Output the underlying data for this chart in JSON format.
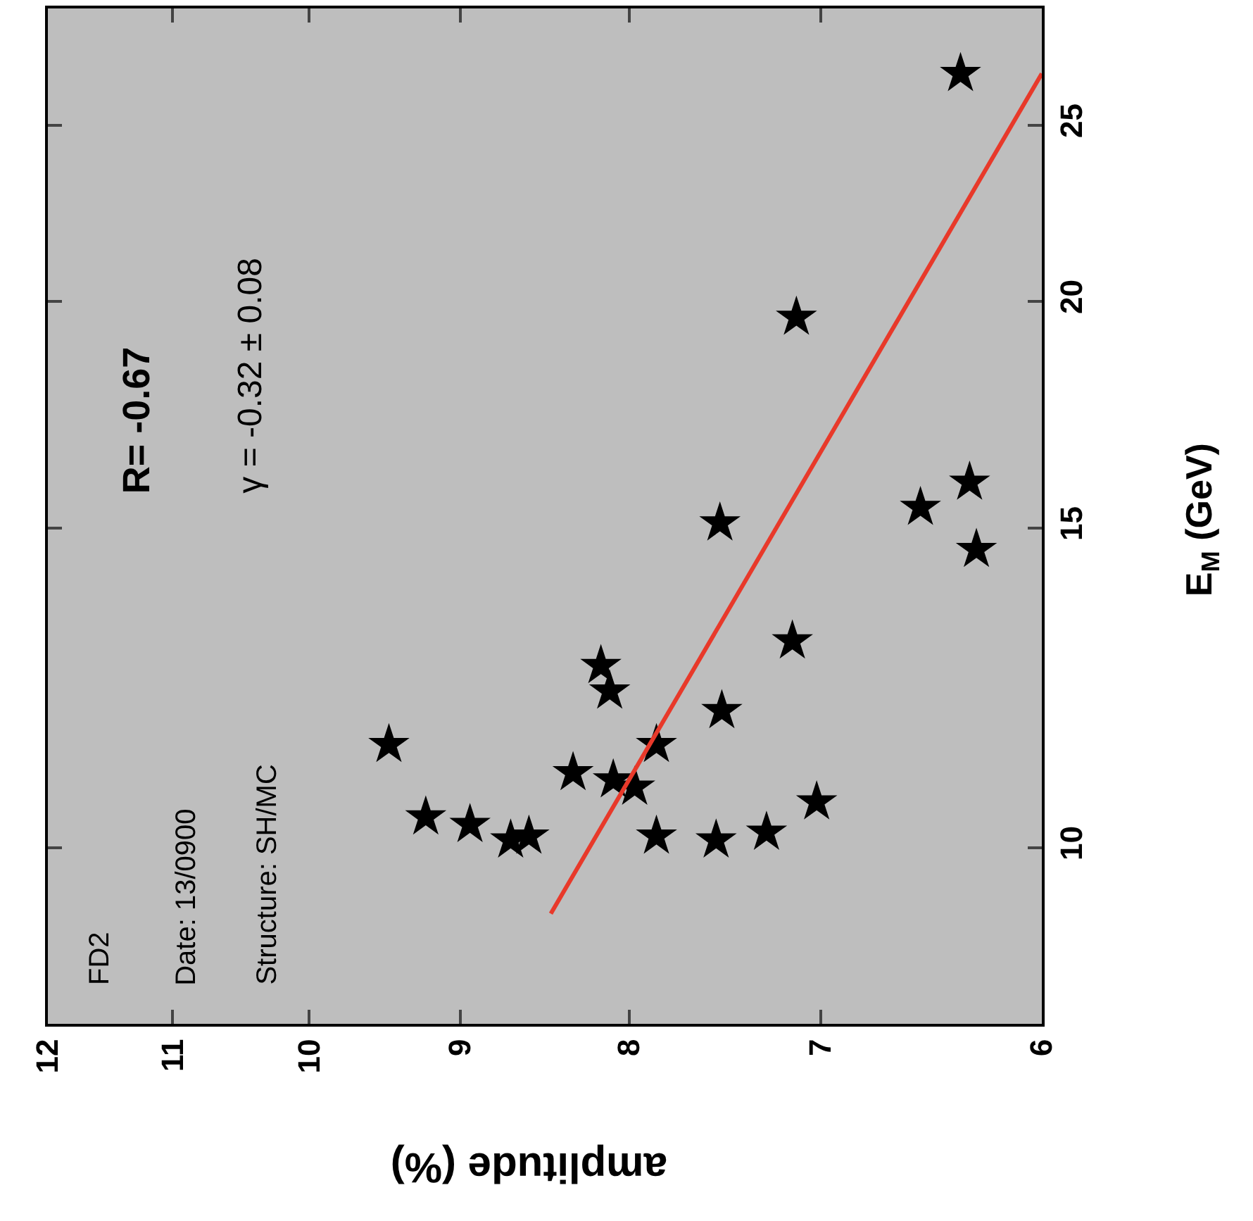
{
  "chart_data": {
    "type": "scatter",
    "xlabel": "amplitude (%)",
    "ylabel": "E$_{M}$ (GeV)",
    "annotations": [
      "FD2",
      "Date: 13/0900",
      "Structure: SH/MC",
      "R= -0.67",
      "γ = -0.32 ± 0.08"
    ],
    "series": [
      {
        "color": "#000000",
        "marker": "star",
        "x": [
          6.35,
          7.12,
          6.31,
          6.53,
          6.28,
          7.51,
          7.14,
          8.16,
          8.11,
          7.5,
          9.46,
          7.85,
          8.32,
          8.09,
          7.97,
          7.02,
          9.22,
          8.94,
          8.69,
          8.58,
          7.85,
          7.53,
          7.27
        ],
        "values": [
          26.7,
          19.6,
          15.9,
          15.4,
          14.6,
          15.1,
          13.0,
          12.6,
          12.2,
          11.9,
          11.4,
          11.4,
          11.0,
          10.9,
          10.8,
          10.6,
          10.4,
          10.3,
          10.1,
          10.15,
          10.15,
          10.1,
          10.2
        ]
      },
      {
        "type": "line",
        "color": "#e8392a",
        "line_style": "solid",
        "marker": "none",
        "x": [
          8.45,
          6.0
        ],
        "values": [
          9.2,
          26.7
        ]
      }
    ],
    "xlim": [
      12,
      6
    ],
    "xticks": [
      12,
      11,
      10,
      9,
      8,
      7,
      6
    ],
    "ylim": [
      8,
      29
    ],
    "yticks": [
      10,
      15,
      20,
      25
    ],
    "log": "xy",
    "grid": false
  }
}
